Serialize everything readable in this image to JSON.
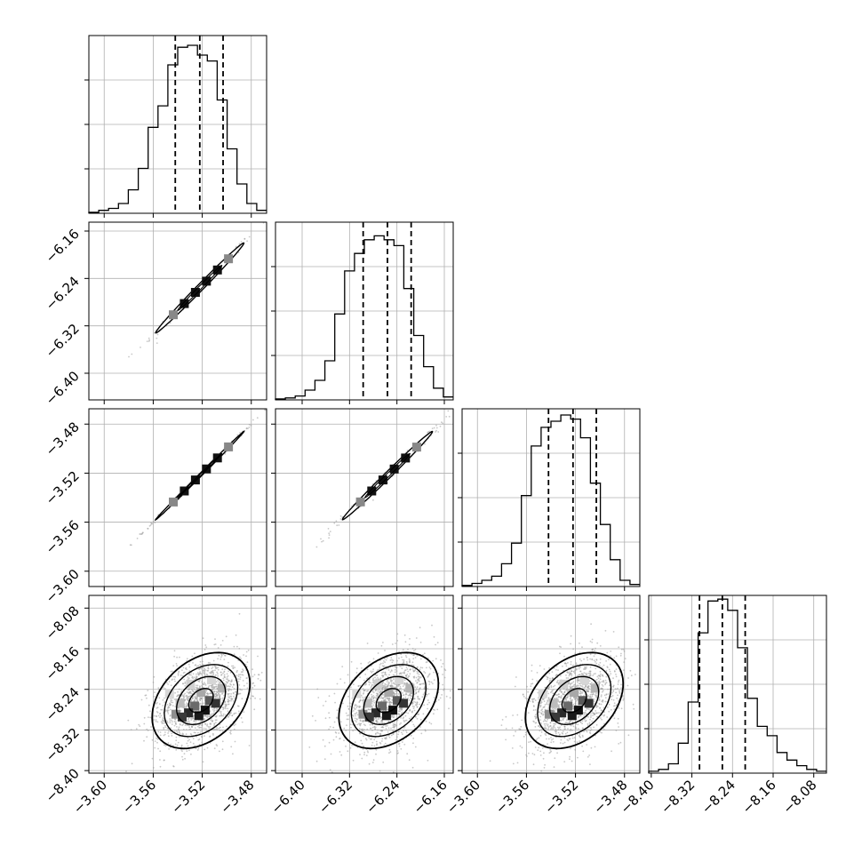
{
  "chart_data": {
    "type": "corner",
    "grid": true,
    "params": [
      {
        "range": [
          -3.6125,
          -3.4675
        ],
        "ticks": [
          -3.6,
          -3.56,
          -3.52,
          -3.48
        ],
        "tick_labels": [
          "−3.60",
          "−3.56",
          "−3.52",
          "−3.48"
        ],
        "quantiles": [
          -3.542,
          -3.522,
          -3.503
        ],
        "hist": [
          0.5,
          1.5,
          2.5,
          5,
          12,
          23,
          44,
          55,
          76,
          85,
          86,
          81,
          78,
          58,
          33,
          15,
          5,
          1.5
        ],
        "hist_max": 91
      },
      {
        "range": [
          -6.445,
          -6.145
        ],
        "ticks": [
          -6.4,
          -6.32,
          -6.24,
          -6.16
        ],
        "tick_labels": [
          "−6.40",
          "−6.32",
          "−6.24",
          "−6.16"
        ],
        "quantiles": [
          -6.297,
          -6.256,
          -6.216
        ],
        "hist": [
          0.5,
          1,
          2,
          5,
          10,
          20,
          44,
          66,
          75,
          82,
          84,
          82,
          79,
          57,
          33,
          17,
          6,
          1.5
        ],
        "hist_max": 91
      },
      {
        "range": [
          -3.6125,
          -3.4675
        ],
        "ticks": [
          -3.6,
          -3.56,
          -3.52,
          -3.48
        ],
        "tick_labels": [
          "−3.60",
          "−3.56",
          "−3.52",
          "−3.48"
        ],
        "quantiles": [
          -3.542,
          -3.522,
          -3.503
        ],
        "hist": [
          0.5,
          1.5,
          3,
          5,
          11,
          21,
          44,
          68,
          77,
          80,
          83,
          81,
          72,
          50,
          30,
          13,
          3,
          1
        ],
        "hist_max": 86
      },
      {
        "range": [
          -8.405,
          -8.055
        ],
        "ticks": [
          -8.4,
          -8.32,
          -8.24,
          -8.16,
          -8.08
        ],
        "tick_labels": [
          "−8.40",
          "−8.32",
          "−8.24",
          "−8.16",
          "−8.08"
        ],
        "quantiles": [
          -8.305,
          -8.26,
          -8.215
        ],
        "hist": [
          1,
          2,
          5,
          16,
          38,
          75,
          92,
          93,
          87,
          67,
          40,
          25,
          20,
          11,
          7,
          4,
          2,
          1
        ],
        "hist_max": 95
      }
    ],
    "pairs": [
      {
        "row": 1,
        "col": 0,
        "kind": "line",
        "means": [
          -3.522,
          -6.256
        ],
        "sd": [
          0.018,
          0.038
        ],
        "corr": 0.995
      },
      {
        "row": 2,
        "col": 0,
        "kind": "line",
        "means": [
          -3.522,
          -3.522
        ],
        "sd": [
          0.018,
          0.018
        ],
        "corr": 0.999
      },
      {
        "row": 2,
        "col": 1,
        "kind": "line",
        "means": [
          -6.256,
          -3.522
        ],
        "sd": [
          0.038,
          0.018
        ],
        "corr": 0.995
      },
      {
        "row": 3,
        "col": 0,
        "kind": "blob",
        "means": [
          -3.521,
          -8.262
        ],
        "sd": [
          0.019,
          0.045
        ],
        "corr": 0.35
      },
      {
        "row": 3,
        "col": 1,
        "kind": "blob",
        "means": [
          -6.254,
          -8.262
        ],
        "sd": [
          0.04,
          0.045
        ],
        "corr": 0.35
      },
      {
        "row": 3,
        "col": 2,
        "kind": "blob",
        "means": [
          -3.521,
          -8.262
        ],
        "sd": [
          0.019,
          0.045
        ],
        "corr": 0.35
      }
    ]
  }
}
